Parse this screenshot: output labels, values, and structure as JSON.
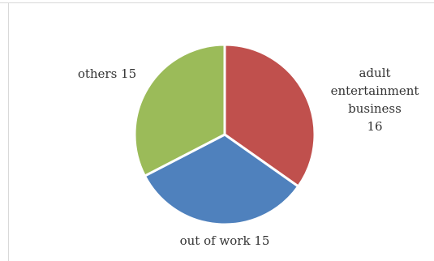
{
  "chart_data": {
    "type": "pie",
    "categories": [
      "adult entertainment business",
      "out of work",
      "others"
    ],
    "values": [
      16,
      15,
      15
    ],
    "colors": [
      "#c0504d",
      "#4f81bd",
      "#9bbb59"
    ],
    "legend": "none",
    "data_labels": [
      [
        "adult",
        "entertainment",
        "business",
        "16"
      ],
      [
        "out of work 15"
      ],
      [
        "others 15"
      ]
    ]
  }
}
